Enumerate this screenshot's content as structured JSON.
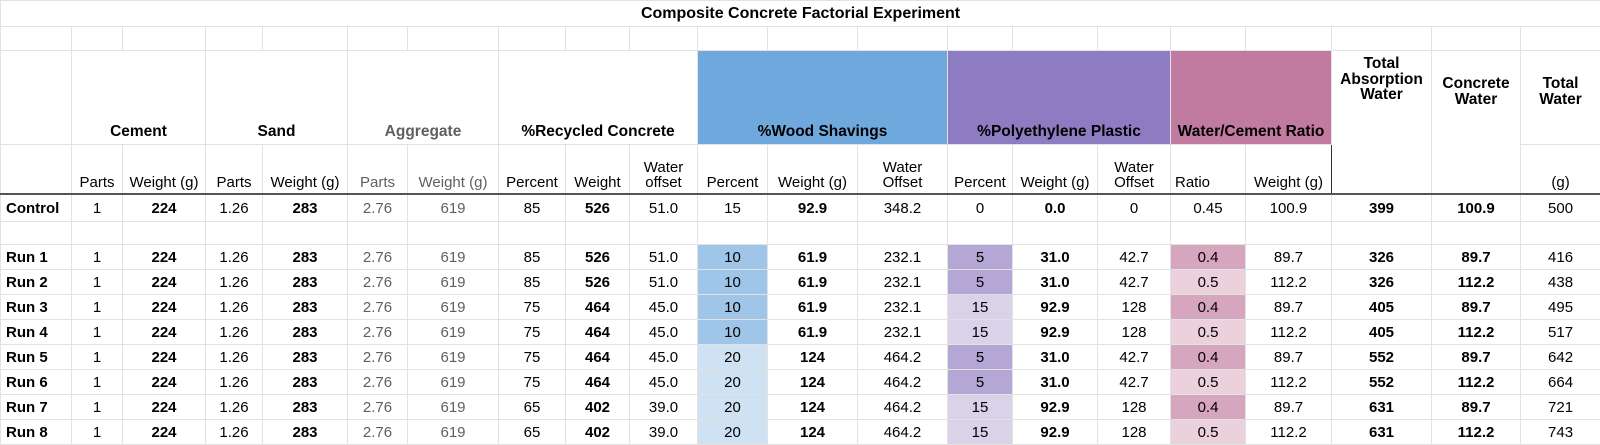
{
  "title": "Composite Concrete Factorial Experiment",
  "groups": {
    "cement": "Cement",
    "sand": "Sand",
    "aggregate": "Aggregate",
    "recycled": "%Recycled Concrete",
    "wood": "%Wood Shavings",
    "poly": "%Polyethylene Plastic",
    "ratio": "Water/Cement Ratio",
    "total_abs": "Total Absorption Water",
    "concrete_water": "Concrete Water",
    "total_water": "Total Water"
  },
  "subheaders": {
    "cement_parts": "Parts",
    "cement_weight": "Weight (g)",
    "sand_parts": "Parts",
    "sand_weight": "Weight (g)",
    "agg_parts": "Parts",
    "agg_weight": "Weight (g)",
    "rec_percent": "Percent",
    "rec_weight": "Weight",
    "rec_offset": "Water offset",
    "wood_percent": "Percent",
    "wood_weight": "Weight (g)",
    "wood_offset": "Water Offset",
    "poly_percent": "Percent",
    "poly_weight": "Weight (g)",
    "poly_offset": "Water Offset",
    "ratio_ratio": "Ratio",
    "ratio_weight": "Weight (g)",
    "total_water_unit": "(g)"
  },
  "colors": {
    "wood_header": "#6fa8dc",
    "poly_header": "#8e7cc3",
    "ratio_header": "#c27ba0"
  },
  "rows": [
    {
      "label": "Control",
      "cement_parts": "1",
      "cement_weight": "224",
      "sand_parts": "1.26",
      "sand_weight": "283",
      "agg_parts": "2.76",
      "agg_weight": "619",
      "rec_percent": "85",
      "rec_weight": "526",
      "rec_offset": "51.0",
      "wood_percent": "15",
      "wood_weight": "92.9",
      "wood_offset": "348.2",
      "poly_percent": "0",
      "poly_weight": "0.0",
      "poly_offset": "0",
      "ratio": "0.45",
      "ratio_weight": "100.9",
      "total_abs": "399",
      "concrete_water": "100.9",
      "total_water": "500"
    },
    {
      "label": "Run 1",
      "cement_parts": "1",
      "cement_weight": "224",
      "sand_parts": "1.26",
      "sand_weight": "283",
      "agg_parts": "2.76",
      "agg_weight": "619",
      "rec_percent": "85",
      "rec_weight": "526",
      "rec_offset": "51.0",
      "wood_percent": "10",
      "wood_weight": "61.9",
      "wood_offset": "232.1",
      "poly_percent": "5",
      "poly_weight": "31.0",
      "poly_offset": "42.7",
      "ratio": "0.4",
      "ratio_weight": "89.7",
      "total_abs": "326",
      "concrete_water": "89.7",
      "total_water": "416"
    },
    {
      "label": "Run 2",
      "cement_parts": "1",
      "cement_weight": "224",
      "sand_parts": "1.26",
      "sand_weight": "283",
      "agg_parts": "2.76",
      "agg_weight": "619",
      "rec_percent": "85",
      "rec_weight": "526",
      "rec_offset": "51.0",
      "wood_percent": "10",
      "wood_weight": "61.9",
      "wood_offset": "232.1",
      "poly_percent": "5",
      "poly_weight": "31.0",
      "poly_offset": "42.7",
      "ratio": "0.5",
      "ratio_weight": "112.2",
      "total_abs": "326",
      "concrete_water": "112.2",
      "total_water": "438"
    },
    {
      "label": "Run 3",
      "cement_parts": "1",
      "cement_weight": "224",
      "sand_parts": "1.26",
      "sand_weight": "283",
      "agg_parts": "2.76",
      "agg_weight": "619",
      "rec_percent": "75",
      "rec_weight": "464",
      "rec_offset": "45.0",
      "wood_percent": "10",
      "wood_weight": "61.9",
      "wood_offset": "232.1",
      "poly_percent": "15",
      "poly_weight": "92.9",
      "poly_offset": "128",
      "ratio": "0.4",
      "ratio_weight": "89.7",
      "total_abs": "405",
      "concrete_water": "89.7",
      "total_water": "495"
    },
    {
      "label": "Run 4",
      "cement_parts": "1",
      "cement_weight": "224",
      "sand_parts": "1.26",
      "sand_weight": "283",
      "agg_parts": "2.76",
      "agg_weight": "619",
      "rec_percent": "75",
      "rec_weight": "464",
      "rec_offset": "45.0",
      "wood_percent": "10",
      "wood_weight": "61.9",
      "wood_offset": "232.1",
      "poly_percent": "15",
      "poly_weight": "92.9",
      "poly_offset": "128",
      "ratio": "0.5",
      "ratio_weight": "112.2",
      "total_abs": "405",
      "concrete_water": "112.2",
      "total_water": "517"
    },
    {
      "label": "Run 5",
      "cement_parts": "1",
      "cement_weight": "224",
      "sand_parts": "1.26",
      "sand_weight": "283",
      "agg_parts": "2.76",
      "agg_weight": "619",
      "rec_percent": "75",
      "rec_weight": "464",
      "rec_offset": "45.0",
      "wood_percent": "20",
      "wood_weight": "124",
      "wood_offset": "464.2",
      "poly_percent": "5",
      "poly_weight": "31.0",
      "poly_offset": "42.7",
      "ratio": "0.4",
      "ratio_weight": "89.7",
      "total_abs": "552",
      "concrete_water": "89.7",
      "total_water": "642"
    },
    {
      "label": "Run 6",
      "cement_parts": "1",
      "cement_weight": "224",
      "sand_parts": "1.26",
      "sand_weight": "283",
      "agg_parts": "2.76",
      "agg_weight": "619",
      "rec_percent": "75",
      "rec_weight": "464",
      "rec_offset": "45.0",
      "wood_percent": "20",
      "wood_weight": "124",
      "wood_offset": "464.2",
      "poly_percent": "5",
      "poly_weight": "31.0",
      "poly_offset": "42.7",
      "ratio": "0.5",
      "ratio_weight": "112.2",
      "total_abs": "552",
      "concrete_water": "112.2",
      "total_water": "664"
    },
    {
      "label": "Run 7",
      "cement_parts": "1",
      "cement_weight": "224",
      "sand_parts": "1.26",
      "sand_weight": "283",
      "agg_parts": "2.76",
      "agg_weight": "619",
      "rec_percent": "65",
      "rec_weight": "402",
      "rec_offset": "39.0",
      "wood_percent": "20",
      "wood_weight": "124",
      "wood_offset": "464.2",
      "poly_percent": "15",
      "poly_weight": "92.9",
      "poly_offset": "128",
      "ratio": "0.4",
      "ratio_weight": "89.7",
      "total_abs": "631",
      "concrete_water": "89.7",
      "total_water": "721"
    },
    {
      "label": "Run 8",
      "cement_parts": "1",
      "cement_weight": "224",
      "sand_parts": "1.26",
      "sand_weight": "283",
      "agg_parts": "2.76",
      "agg_weight": "619",
      "rec_percent": "65",
      "rec_weight": "402",
      "rec_offset": "39.0",
      "wood_percent": "20",
      "wood_weight": "124",
      "wood_offset": "464.2",
      "poly_percent": "15",
      "poly_weight": "92.9",
      "poly_offset": "128",
      "ratio": "0.5",
      "ratio_weight": "112.2",
      "total_abs": "631",
      "concrete_water": "112.2",
      "total_water": "743"
    }
  ]
}
